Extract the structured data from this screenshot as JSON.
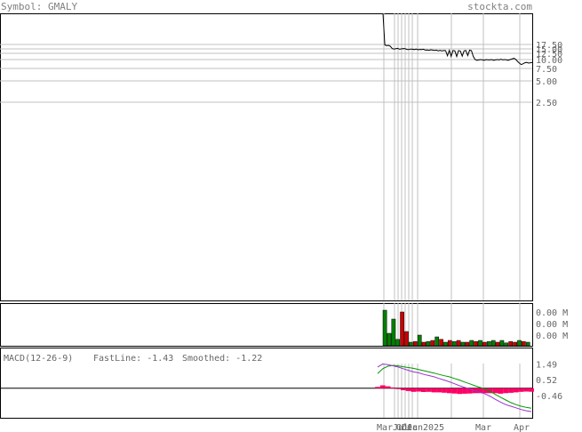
{
  "header": {
    "symbol_text": "Symbol: GMALY",
    "site": "stockta.com"
  },
  "colors": {
    "text": "#808080",
    "grid": "#c0c0c0",
    "up_volume": "#008000",
    "down_volume": "#cc0000",
    "macd_fast": "#9933cc",
    "macd_smooth": "#009900",
    "macd_hist": "#ff0066"
  },
  "chart_data": [
    {
      "type": "line",
      "title": "",
      "yaxis_ticks": [
        "17.50",
        "15.00",
        "12.50",
        "10.00",
        "7.50",
        "5.00",
        "2.50"
      ],
      "y_tick_values": [
        17.5,
        15.0,
        12.5,
        10.0,
        7.5,
        5.0,
        2.5
      ],
      "ylim": [
        0,
        40
      ],
      "x_tick_labels": [
        "Mar",
        "Jul",
        "Oct",
        "Dec",
        "Jan",
        "2025",
        "Mar",
        "Apr"
      ],
      "series": [
        {
          "values": [
            40,
            17.2,
            16.8,
            17.0,
            16.5,
            15.2,
            14.9,
            15.1,
            15.3,
            14.8,
            15.0,
            15.2,
            15.1,
            14.7,
            14.6,
            14.9,
            14.8,
            14.6,
            14.9,
            14.5,
            14.7,
            14.6,
            14.8,
            14.3,
            14.4,
            14.2,
            14.5,
            14.3,
            14.1,
            14.3,
            13.9,
            14.2,
            13.8,
            14.1,
            14.0,
            11.5,
            14.2,
            11.3,
            14.1,
            13.9,
            11.2,
            14.0,
            13.8,
            11.4,
            13.9,
            14.1,
            11.6,
            14.3,
            14.0,
            11.3,
            10.0,
            9.8,
            9.9,
            10.0,
            9.9,
            9.8,
            10.0,
            9.9,
            9.9,
            10.0,
            9.8,
            9.9,
            10.0,
            9.9,
            10.1,
            9.9,
            10.0,
            9.9,
            9.8,
            10.0,
            10.2,
            10.5,
            10.1,
            9.5,
            9.0,
            8.6,
            8.8,
            9.1,
            9.2,
            9.0,
            9.1,
            9.2
          ]
        }
      ]
    },
    {
      "type": "bar",
      "title": "",
      "yaxis_ticks": [
        "0.00 M",
        "0.00 M",
        "0.00 M"
      ],
      "bars": [
        {
          "h": 1.0,
          "c": "up"
        },
        {
          "h": 0.35,
          "c": "up"
        },
        {
          "h": 0.75,
          "c": "up"
        },
        {
          "h": 0.18,
          "c": "up"
        },
        {
          "h": 0.95,
          "c": "down"
        },
        {
          "h": 0.4,
          "c": "down"
        },
        {
          "h": 0.1,
          "c": "up"
        },
        {
          "h": 0.12,
          "c": "down"
        },
        {
          "h": 0.3,
          "c": "up"
        },
        {
          "h": 0.1,
          "c": "down"
        },
        {
          "h": 0.12,
          "c": "up"
        },
        {
          "h": 0.15,
          "c": "down"
        },
        {
          "h": 0.25,
          "c": "up"
        },
        {
          "h": 0.18,
          "c": "down"
        },
        {
          "h": 0.1,
          "c": "up"
        },
        {
          "h": 0.15,
          "c": "down"
        },
        {
          "h": 0.12,
          "c": "up"
        },
        {
          "h": 0.15,
          "c": "down"
        },
        {
          "h": 0.1,
          "c": "up"
        },
        {
          "h": 0.1,
          "c": "down"
        },
        {
          "h": 0.15,
          "c": "up"
        },
        {
          "h": 0.12,
          "c": "down"
        },
        {
          "h": 0.15,
          "c": "up"
        },
        {
          "h": 0.1,
          "c": "down"
        },
        {
          "h": 0.12,
          "c": "up"
        },
        {
          "h": 0.15,
          "c": "up"
        },
        {
          "h": 0.1,
          "c": "down"
        },
        {
          "h": 0.15,
          "c": "up"
        },
        {
          "h": 0.08,
          "c": "up"
        },
        {
          "h": 0.12,
          "c": "down"
        },
        {
          "h": 0.1,
          "c": "down"
        },
        {
          "h": 0.15,
          "c": "up"
        },
        {
          "h": 0.12,
          "c": "down"
        },
        {
          "h": 0.1,
          "c": "up"
        }
      ]
    },
    {
      "type": "line",
      "title": "MACD(12-26-9)",
      "legend": [
        {
          "label": "FastLine: -1.43",
          "color": "#9933cc"
        },
        {
          "label": "Smoothed: -1.22",
          "color": "#009900"
        }
      ],
      "yaxis_ticks": [
        "1.49",
        "0.52",
        "-0.46"
      ],
      "y_tick_values": [
        1.49,
        0.52,
        -0.46
      ],
      "ylim": [
        -1.7,
        1.95
      ],
      "fast": [
        1.3,
        1.49,
        1.45,
        1.38,
        1.3,
        1.2,
        1.1,
        1.0,
        0.95,
        0.85,
        0.78,
        0.7,
        0.6,
        0.5,
        0.4,
        0.28,
        0.15,
        0.05,
        -0.05,
        -0.15,
        -0.25,
        -0.35,
        -0.5,
        -0.68,
        -0.85,
        -1.0,
        -1.1,
        -1.2,
        -1.3,
        -1.38,
        -1.43
      ],
      "smooth": [
        0.9,
        1.2,
        1.35,
        1.4,
        1.37,
        1.32,
        1.27,
        1.22,
        1.15,
        1.08,
        1.0,
        0.93,
        0.85,
        0.77,
        0.7,
        0.6,
        0.5,
        0.38,
        0.27,
        0.15,
        0.05,
        -0.05,
        -0.2,
        -0.38,
        -0.55,
        -0.72,
        -0.88,
        -1.0,
        -1.1,
        -1.17,
        -1.22
      ],
      "hist": [
        0.08,
        0.18,
        0.12,
        0.05,
        -0.05,
        -0.12,
        -0.17,
        -0.22,
        -0.2,
        -0.23,
        -0.22,
        -0.25,
        -0.25,
        -0.27,
        -0.3,
        -0.32,
        -0.35,
        -0.33,
        -0.32,
        -0.3,
        -0.3,
        -0.3,
        -0.3,
        -0.3,
        -0.33,
        -0.3,
        -0.28,
        -0.25,
        -0.22,
        -0.2,
        -0.21
      ]
    }
  ]
}
